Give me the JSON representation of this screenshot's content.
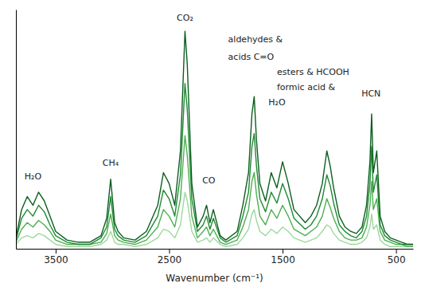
{
  "chart_data": {
    "type": "line",
    "x_label": "Wavenumber (cm⁻¹)",
    "xlim": [
      3850,
      350
    ],
    "xticks": [
      3500,
      2500,
      1500,
      500
    ],
    "ylim": [
      0,
      1.1
    ],
    "tick_labels": "x",
    "grid": false,
    "x": [
      3850,
      3800,
      3750,
      3700,
      3650,
      3600,
      3550,
      3500,
      3400,
      3300,
      3200,
      3100,
      3050,
      3015,
      2980,
      2950,
      2900,
      2800,
      2700,
      2600,
      2550,
      2500,
      2450,
      2400,
      2360,
      2340,
      2300,
      2250,
      2200,
      2170,
      2140,
      2110,
      2050,
      2000,
      1900,
      1850,
      1800,
      1770,
      1750,
      1730,
      1700,
      1650,
      1600,
      1550,
      1500,
      1450,
      1400,
      1300,
      1250,
      1200,
      1150,
      1110,
      1080,
      1050,
      1000,
      950,
      900,
      850,
      800,
      760,
      730,
      715,
      700,
      670,
      640,
      600,
      550,
      500,
      450,
      400,
      350
    ],
    "series": [
      {
        "color": "#0b5e1f",
        "values": [
          0.05,
          0.18,
          0.24,
          0.2,
          0.26,
          0.22,
          0.15,
          0.08,
          0.04,
          0.03,
          0.03,
          0.06,
          0.14,
          0.32,
          0.12,
          0.08,
          0.05,
          0.04,
          0.08,
          0.2,
          0.35,
          0.3,
          0.2,
          0.45,
          1.0,
          0.85,
          0.3,
          0.1,
          0.15,
          0.2,
          0.12,
          0.18,
          0.06,
          0.04,
          0.08,
          0.2,
          0.35,
          0.62,
          0.7,
          0.5,
          0.3,
          0.22,
          0.35,
          0.28,
          0.4,
          0.3,
          0.18,
          0.12,
          0.15,
          0.2,
          0.3,
          0.45,
          0.38,
          0.28,
          0.15,
          0.1,
          0.08,
          0.07,
          0.1,
          0.2,
          0.4,
          0.62,
          0.35,
          0.45,
          0.15,
          0.08,
          0.05,
          0.04,
          0.03,
          0.02,
          0.02
        ]
      },
      {
        "color": "#1e8a32",
        "values": [
          0.04,
          0.14,
          0.18,
          0.15,
          0.2,
          0.17,
          0.11,
          0.06,
          0.03,
          0.02,
          0.02,
          0.05,
          0.1,
          0.24,
          0.09,
          0.06,
          0.04,
          0.03,
          0.06,
          0.15,
          0.27,
          0.23,
          0.15,
          0.34,
          0.76,
          0.64,
          0.23,
          0.08,
          0.11,
          0.15,
          0.09,
          0.14,
          0.05,
          0.03,
          0.06,
          0.15,
          0.26,
          0.47,
          0.53,
          0.38,
          0.23,
          0.17,
          0.26,
          0.21,
          0.3,
          0.23,
          0.14,
          0.09,
          0.11,
          0.15,
          0.23,
          0.34,
          0.29,
          0.21,
          0.11,
          0.08,
          0.06,
          0.05,
          0.08,
          0.15,
          0.3,
          0.47,
          0.26,
          0.34,
          0.11,
          0.06,
          0.04,
          0.03,
          0.02,
          0.02,
          0.02
        ]
      },
      {
        "color": "#4caf50",
        "values": [
          0.03,
          0.09,
          0.12,
          0.1,
          0.13,
          0.11,
          0.08,
          0.04,
          0.02,
          0.02,
          0.02,
          0.03,
          0.07,
          0.16,
          0.06,
          0.04,
          0.03,
          0.02,
          0.04,
          0.1,
          0.18,
          0.15,
          0.1,
          0.23,
          0.52,
          0.43,
          0.15,
          0.05,
          0.08,
          0.1,
          0.06,
          0.09,
          0.03,
          0.02,
          0.04,
          0.1,
          0.18,
          0.31,
          0.35,
          0.25,
          0.15,
          0.11,
          0.18,
          0.14,
          0.2,
          0.15,
          0.09,
          0.06,
          0.08,
          0.1,
          0.15,
          0.23,
          0.19,
          0.14,
          0.08,
          0.05,
          0.04,
          0.04,
          0.05,
          0.1,
          0.2,
          0.31,
          0.18,
          0.23,
          0.08,
          0.04,
          0.03,
          0.02,
          0.02,
          0.01,
          0.01
        ]
      },
      {
        "color": "#9ed89e",
        "values": [
          0.02,
          0.05,
          0.06,
          0.05,
          0.07,
          0.06,
          0.04,
          0.02,
          0.01,
          0.01,
          0.01,
          0.02,
          0.04,
          0.08,
          0.03,
          0.02,
          0.02,
          0.01,
          0.02,
          0.05,
          0.09,
          0.08,
          0.05,
          0.11,
          0.26,
          0.22,
          0.08,
          0.03,
          0.04,
          0.05,
          0.03,
          0.05,
          0.02,
          0.01,
          0.02,
          0.05,
          0.09,
          0.16,
          0.18,
          0.13,
          0.08,
          0.06,
          0.09,
          0.07,
          0.1,
          0.08,
          0.05,
          0.03,
          0.04,
          0.05,
          0.08,
          0.11,
          0.1,
          0.07,
          0.04,
          0.03,
          0.02,
          0.02,
          0.03,
          0.05,
          0.1,
          0.16,
          0.09,
          0.11,
          0.04,
          0.02,
          0.01,
          0.01,
          0.01,
          0.01,
          0.01
        ]
      }
    ],
    "annotations": [
      {
        "text": "H₂O",
        "x": 3700,
        "y": 0.32
      },
      {
        "text": "CH₄",
        "x": 3015,
        "y": 0.38
      },
      {
        "text": "CO₂",
        "x": 2360,
        "y": 1.05
      },
      {
        "text": "CO",
        "x": 2150,
        "y": 0.3
      },
      {
        "text": "aldehydes &",
        "x": 1980,
        "y": 0.95
      },
      {
        "text": "acids C=O",
        "x": 1980,
        "y": 0.87
      },
      {
        "text": "esters & HCOOH",
        "x": 1550,
        "y": 0.8
      },
      {
        "text": "formic acid &",
        "x": 1550,
        "y": 0.73
      },
      {
        "text": "H₂O",
        "x": 1550,
        "y": 0.66
      },
      {
        "text": "HCN",
        "x": 720,
        "y": 0.7
      }
    ]
  }
}
